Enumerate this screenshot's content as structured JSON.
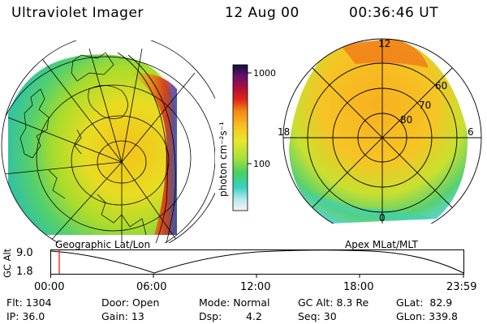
{
  "header": {
    "instrument": "Ultraviolet Imager",
    "date": "12 Aug 00",
    "time": "00:36:46 UT"
  },
  "left_map": {
    "caption": "Geographic Lat/Lon"
  },
  "right_map": {
    "caption": "Apex MLat/MLT",
    "mlt_labels": {
      "top": "12",
      "left": "18",
      "right": "6",
      "bottom": "0"
    },
    "lat_labels": [
      "60",
      "70",
      "80"
    ]
  },
  "colorbar": {
    "unit_label": "photon cm⁻²s⁻¹",
    "ticks": [
      "1000",
      "100"
    ],
    "scale": "log",
    "range": [
      30,
      1200
    ]
  },
  "altitude_plot": {
    "ylabel": "GC Alt",
    "y_ticks": [
      "9.0",
      "1.8"
    ],
    "x_ticks": [
      "00:00",
      "06:00",
      "12:00",
      "18:00",
      "23:59"
    ]
  },
  "info": {
    "flt": "Flt: 1304",
    "ip": "IP: 36.0",
    "door": "Door: Open",
    "gain": "Gain: 13",
    "mode": "Mode: Normal",
    "dsp_label": "Dsp:",
    "dsp_value": "4.2",
    "gcalt": "GC Alt: 8.3 Re",
    "seq": "Seq: 30",
    "glat": "GLat:  82.9",
    "glon": "GLon: 339.8"
  },
  "colors": {
    "marker": "#ff0000",
    "grid": "#000000"
  }
}
